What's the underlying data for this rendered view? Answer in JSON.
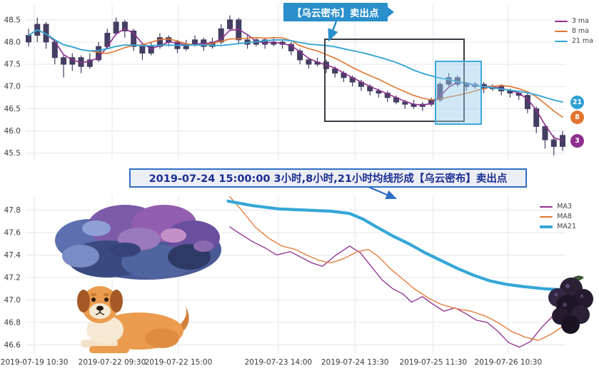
{
  "top_chart": {
    "callout": "【乌云密布】卖出点",
    "legend": [
      {
        "label": "3 ma",
        "color": "#8e2f8f"
      },
      {
        "label": "8 ma",
        "color": "#e0762f"
      },
      {
        "label": "21 ma",
        "color": "#35a7d7"
      }
    ],
    "badges": [
      {
        "label": "21",
        "window": 21,
        "color": "#2e9fd4"
      },
      {
        "label": "8",
        "window": 8,
        "color": "#e0762f"
      },
      {
        "label": "3",
        "window": 3,
        "color": "#8e2f8f"
      }
    ]
  },
  "annotation": {
    "text": "2019-07-24 15:00:00 3小时,8小时,21小时均线形成【乌云密布】卖出点"
  },
  "bottom_chart": {
    "legend": [
      {
        "label": "MA3",
        "color": "#8e2f8f",
        "thick": false
      },
      {
        "label": "MA8",
        "color": "#e0762f",
        "thick": false
      },
      {
        "label": "MA21",
        "color": "#35a7d7",
        "thick": true
      }
    ]
  },
  "chart_data": [
    {
      "type": "candlestick",
      "title": "",
      "ylabel": "",
      "ylim": [
        45.35,
        48.85
      ],
      "yticks": [
        48.5,
        48.0,
        47.5,
        47.0,
        46.5,
        46.0,
        45.5
      ],
      "grid": true,
      "legend": [
        "3 ma",
        "8 ma",
        "21 ma"
      ],
      "candle_color": "#453e63",
      "ma": [
        {
          "name": "3 ma",
          "window": 3,
          "color": "#8e2f8f",
          "width": 1.6
        },
        {
          "name": "8 ma",
          "window": 8,
          "color": "#e0762f",
          "width": 1.6
        },
        {
          "name": "21 ma",
          "window": 21,
          "color": "#35a7d7",
          "width": 1.9
        }
      ],
      "candles": [
        [
          48.0,
          48.3,
          47.9,
          48.15
        ],
        [
          48.15,
          48.55,
          48.0,
          48.4
        ],
        [
          48.4,
          48.45,
          47.85,
          48.0
        ],
        [
          48.0,
          48.05,
          47.5,
          47.65
        ],
        [
          47.65,
          47.7,
          47.2,
          47.5
        ],
        [
          47.5,
          47.75,
          47.35,
          47.65
        ],
        [
          47.65,
          47.7,
          47.3,
          47.45
        ],
        [
          47.45,
          47.75,
          47.4,
          47.6
        ],
        [
          47.6,
          48.0,
          47.55,
          47.9
        ],
        [
          47.9,
          48.3,
          47.85,
          48.2
        ],
        [
          48.2,
          48.55,
          48.15,
          48.45
        ],
        [
          48.45,
          48.5,
          48.1,
          48.25
        ],
        [
          48.25,
          48.3,
          47.8,
          47.9
        ],
        [
          47.9,
          47.95,
          47.6,
          47.75
        ],
        [
          47.75,
          48.0,
          47.7,
          47.9
        ],
        [
          47.9,
          48.2,
          47.85,
          48.1
        ],
        [
          48.1,
          48.15,
          47.9,
          48.0
        ],
        [
          48.0,
          48.05,
          47.75,
          47.85
        ],
        [
          47.85,
          48.05,
          47.8,
          47.95
        ],
        [
          47.95,
          48.15,
          47.9,
          48.05
        ],
        [
          48.05,
          48.1,
          47.8,
          47.9
        ],
        [
          47.9,
          48.1,
          47.85,
          48.0
        ],
        [
          48.0,
          48.4,
          47.95,
          48.3
        ],
        [
          48.3,
          48.6,
          48.25,
          48.5
        ],
        [
          48.5,
          48.55,
          47.95,
          48.05
        ],
        [
          48.05,
          48.15,
          47.85,
          47.95
        ],
        [
          47.95,
          48.1,
          47.9,
          48.05
        ],
        [
          48.05,
          48.1,
          47.85,
          47.95
        ],
        [
          47.95,
          48.1,
          47.9,
          48.0
        ],
        [
          48.0,
          48.05,
          47.85,
          47.95
        ],
        [
          47.95,
          48.0,
          47.7,
          47.8
        ],
        [
          47.8,
          47.85,
          47.5,
          47.6
        ],
        [
          47.6,
          47.65,
          47.4,
          47.5
        ],
        [
          47.5,
          47.65,
          47.45,
          47.55
        ],
        [
          47.55,
          47.6,
          47.3,
          47.4
        ],
        [
          47.4,
          47.45,
          47.2,
          47.3
        ],
        [
          47.3,
          47.35,
          47.1,
          47.2
        ],
        [
          47.2,
          47.25,
          47.0,
          47.1
        ],
        [
          47.1,
          47.15,
          46.9,
          47.0
        ],
        [
          47.0,
          47.05,
          46.8,
          46.9
        ],
        [
          46.9,
          46.95,
          46.75,
          46.85
        ],
        [
          46.85,
          46.9,
          46.65,
          46.75
        ],
        [
          46.75,
          46.8,
          46.6,
          46.65
        ],
        [
          46.65,
          46.7,
          46.5,
          46.6
        ],
        [
          46.6,
          46.7,
          46.5,
          46.55
        ],
        [
          46.55,
          46.65,
          46.45,
          46.6
        ],
        [
          46.6,
          46.75,
          46.55,
          46.7
        ],
        [
          46.7,
          47.1,
          46.65,
          47.05
        ],
        [
          47.05,
          47.3,
          47.0,
          47.2
        ],
        [
          47.2,
          47.25,
          47.0,
          47.05
        ],
        [
          47.05,
          47.1,
          46.9,
          47.0
        ],
        [
          47.0,
          47.1,
          46.95,
          47.05
        ],
        [
          47.05,
          47.1,
          46.85,
          46.95
        ],
        [
          46.95,
          47.05,
          46.9,
          47.0
        ],
        [
          47.0,
          47.05,
          46.8,
          46.9
        ],
        [
          46.9,
          46.95,
          46.75,
          46.85
        ],
        [
          46.85,
          46.9,
          46.7,
          46.8
        ],
        [
          46.8,
          46.85,
          46.4,
          46.5
        ],
        [
          46.5,
          46.55,
          45.95,
          46.1
        ],
        [
          46.1,
          46.15,
          45.6,
          45.8
        ],
        [
          45.8,
          45.9,
          45.45,
          45.65
        ],
        [
          45.65,
          46.0,
          45.55,
          45.9
        ]
      ]
    },
    {
      "type": "line",
      "title": "",
      "ylabel": "",
      "ylim": [
        46.52,
        47.93
      ],
      "yticks": [
        47.8,
        47.6,
        47.4,
        47.2,
        47.0,
        46.8,
        46.6
      ],
      "grid": true,
      "legend": [
        "MA3",
        "MA8",
        "MA21"
      ],
      "xtick_labels": [
        "2019-07-19 10:30",
        "2019-07-22 09:30",
        "2019-07-22 15:00",
        "2019-07-23 14:00",
        "2019-07-24 13:30",
        "2019-07-25 11:30",
        "2019-07-26 10:30"
      ],
      "xtick_pos": [
        0.016,
        0.16,
        0.283,
        0.468,
        0.61,
        0.755,
        0.894
      ],
      "series": [
        {
          "name": "MA3",
          "color": "#8e2f8f",
          "width": 1.3,
          "points": [
            [
              0.378,
              47.65
            ],
            [
              0.4,
              47.58
            ],
            [
              0.42,
              47.52
            ],
            [
              0.445,
              47.46
            ],
            [
              0.465,
              47.4
            ],
            [
              0.49,
              47.43
            ],
            [
              0.51,
              47.38
            ],
            [
              0.53,
              47.33
            ],
            [
              0.55,
              47.3
            ],
            [
              0.575,
              47.4
            ],
            [
              0.6,
              47.48
            ],
            [
              0.62,
              47.42
            ],
            [
              0.64,
              47.3
            ],
            [
              0.66,
              47.18
            ],
            [
              0.68,
              47.1
            ],
            [
              0.7,
              47.05
            ],
            [
              0.715,
              46.98
            ],
            [
              0.735,
              47.03
            ],
            [
              0.755,
              46.96
            ],
            [
              0.775,
              46.9
            ],
            [
              0.795,
              46.93
            ],
            [
              0.815,
              46.88
            ],
            [
              0.835,
              46.82
            ],
            [
              0.855,
              46.8
            ],
            [
              0.875,
              46.72
            ],
            [
              0.895,
              46.62
            ],
            [
              0.915,
              46.58
            ],
            [
              0.935,
              46.63
            ],
            [
              0.955,
              46.75
            ],
            [
              0.975,
              46.85
            ],
            [
              1.0,
              46.9
            ]
          ]
        },
        {
          "name": "MA8",
          "color": "#e0762f",
          "width": 1.3,
          "points": [
            [
              0.378,
              47.92
            ],
            [
              0.4,
              47.8
            ],
            [
              0.425,
              47.65
            ],
            [
              0.45,
              47.55
            ],
            [
              0.475,
              47.48
            ],
            [
              0.5,
              47.45
            ],
            [
              0.52,
              47.4
            ],
            [
              0.545,
              47.35
            ],
            [
              0.565,
              47.33
            ],
            [
              0.59,
              47.37
            ],
            [
              0.615,
              47.43
            ],
            [
              0.635,
              47.45
            ],
            [
              0.655,
              47.38
            ],
            [
              0.675,
              47.28
            ],
            [
              0.7,
              47.18
            ],
            [
              0.72,
              47.1
            ],
            [
              0.745,
              47.02
            ],
            [
              0.77,
              46.96
            ],
            [
              0.8,
              46.92
            ],
            [
              0.825,
              46.9
            ],
            [
              0.85,
              46.86
            ],
            [
              0.875,
              46.8
            ],
            [
              0.9,
              46.72
            ],
            [
              0.925,
              46.67
            ],
            [
              0.95,
              46.64
            ],
            [
              0.975,
              46.7
            ],
            [
              1.0,
              46.78
            ]
          ]
        },
        {
          "name": "MA21",
          "color": "#35a7d7",
          "width": 4.2,
          "points": [
            [
              0.375,
              47.88
            ],
            [
              0.42,
              47.84
            ],
            [
              0.47,
              47.81
            ],
            [
              0.52,
              47.8
            ],
            [
              0.565,
              47.79
            ],
            [
              0.6,
              47.77
            ],
            [
              0.625,
              47.72
            ],
            [
              0.65,
              47.65
            ],
            [
              0.68,
              47.57
            ],
            [
              0.71,
              47.5
            ],
            [
              0.74,
              47.42
            ],
            [
              0.77,
              47.35
            ],
            [
              0.8,
              47.28
            ],
            [
              0.83,
              47.22
            ],
            [
              0.86,
              47.17
            ],
            [
              0.89,
              47.14
            ],
            [
              0.92,
              47.12
            ],
            [
              0.96,
              47.1
            ],
            [
              1.0,
              47.09
            ]
          ]
        }
      ]
    }
  ]
}
